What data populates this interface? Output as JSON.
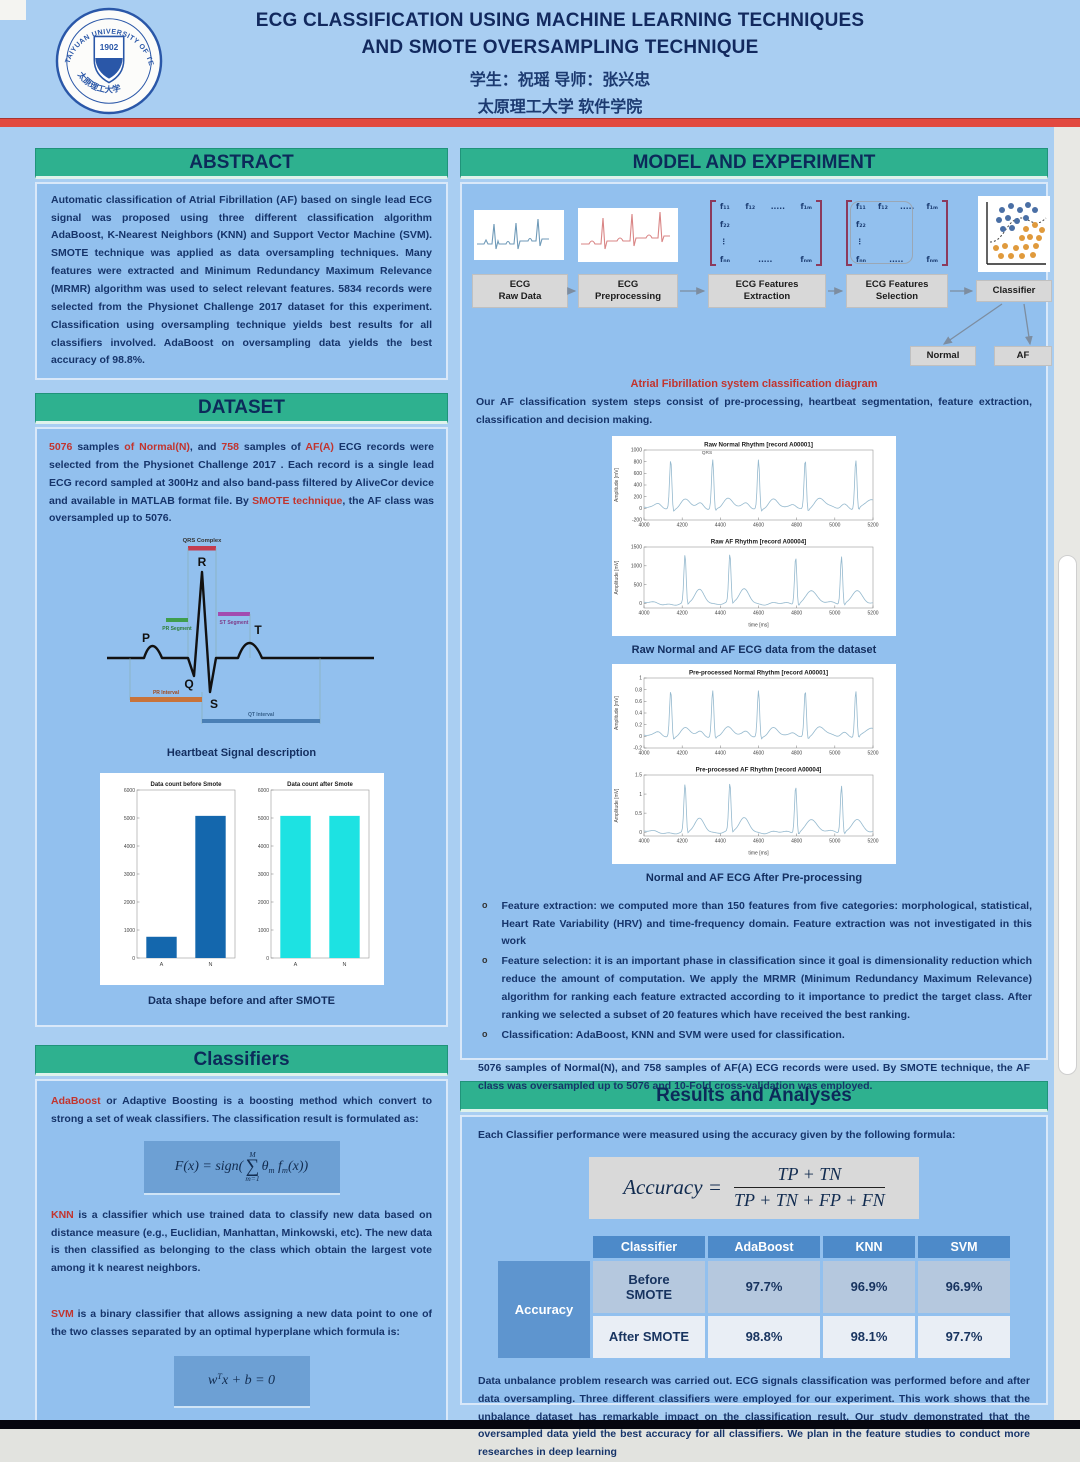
{
  "header": {
    "title_line1": "ECG CLASSIFICATION USING MACHINE LEARNING TECHNIQUES",
    "title_line2": "AND SMOTE OVERSAMPLING TECHNIQUE",
    "authors": "学生：祝瑶    导师：张兴忠",
    "affiliation": "太原理工大学  软件学院",
    "logo": {
      "ring_text": "TAIYUAN UNIVERSITY OF TECHNOLOGY",
      "year": "1902",
      "cn": "太原理工大学"
    }
  },
  "left": {
    "abstract": {
      "title": "ABSTRACT",
      "body": "Automatic classification of Atrial Fibrillation (AF) based on single lead ECG signal was proposed using three different classification algorithm AdaBoost, K-Nearest Neighbors (KNN) and Support Vector Machine (SVM). SMOTE technique was applied as data oversampling techniques. Many features were extracted and Minimum Redundancy Maximum Relevance (MRMR) algorithm was used to select relevant features. 5834 records were selected from the Physionet Challenge 2017 dataset for this experiment. Classification using oversampling technique yields best results for all classifiers involved. AdaBoost on oversampling data yields the best accuracy of 98.8%."
    },
    "dataset": {
      "title": "DATASET",
      "intro": [
        {
          "t": "5076 "
        },
        {
          "t": "samples "
        },
        {
          "t": "of Normal(N)"
        },
        {
          "t": ", and "
        },
        {
          "t": "758 "
        },
        {
          "t": "samples of "
        },
        {
          "t": "AF(A)"
        },
        {
          "t": " ECG records were selected from the Physionet Challenge 2017 . Each record is a single lead ECG record sampled at 300Hz and also band-pass filtered by AliveCor device and available in MATLAB format file. By "
        },
        {
          "t": "SMOTE technique"
        },
        {
          "t": ", the AF class was oversampled up to 5076."
        }
      ],
      "heartbeat": {
        "p": "P",
        "q": "Q",
        "r": "R",
        "s": "S",
        "t": "T",
        "qrs_complex": "QRS Complex",
        "pr_segment": "PR Segment",
        "st_segment": "ST Segment",
        "pr_interval": "PR Interval",
        "qt_interval": "QT Interval",
        "caption": "Heartbeat Signal description"
      },
      "smote_caption": "Data shape before and after SMOTE"
    },
    "classifiers": {
      "title": "Classifiers",
      "adaboost_lead": "AdaBoost",
      "adaboost_rest": " or Adaptive Boosting is a boosting method which convert to strong a set of weak classifiers. The classification result is formulated as:",
      "formula1": {
        "pre": "F(x) = sign(",
        "sum_top": "M",
        "sum_sym": "∑",
        "sum_bot": "m=1",
        "theta": "θ",
        "theta_sub": "m",
        "f": " f",
        "f_sub": "m",
        "post": "(x))"
      },
      "knn_lead": "KNN",
      "knn_rest": " is a classifier which use trained data to classify new data based on distance measure (e.g., Euclidian, Manhattan, Minkowski, etc). The new data is then classified as belonging to the class which obtain the largest vote among it k nearest neighbors.",
      "svm_lead": "SVM",
      "svm_rest": " is a binary classifier that allows assigning a new data point to one of the two classes separated by an optimal hyperplane which formula is:",
      "formula2": {
        "a": "w",
        "sup": "T",
        "b": "x + b = 0"
      }
    }
  },
  "right": {
    "model": {
      "title": "MODEL AND EXPERIMENT",
      "stages": [
        {
          "l1": "ECG",
          "l2": "Raw Data"
        },
        {
          "l1": "ECG",
          "l2": "Preprocessing"
        },
        {
          "l1": "ECG  Features",
          "l2": "Extraction"
        },
        {
          "l1": "ECG  Features",
          "l2": "Selection"
        },
        {
          "l1": "Classifier",
          "l2": ""
        }
      ],
      "outputs": [
        "Normal",
        "AF"
      ],
      "matrix": {
        "c11": "f₁₁",
        "c12": "f₁₂",
        "dots": ".....",
        "c1m": "f₁ₘ",
        "c22": "f₂₂",
        "vdots": "⋮",
        "cnn": "fₙₙ",
        "cnm": "fₙₘ"
      },
      "diagram_caption": "Atrial Fibrillation system classification diagram",
      "intro": "Our AF classification system steps consist of pre-processing, heartbeat segmentation, feature extraction, classification and decision making.",
      "raw_caption": "Raw Normal and AF ECG data from the dataset",
      "pre_caption": "Normal and AF ECG After Pre-processing",
      "bullets": [
        "Feature extraction: we computed more than 150 features from five categories: morphological, statistical, Heart Rate Variability (HRV) and time-frequency domain. Feature extraction was not investigated in this work",
        "Feature selection:  it is an important phase in classification since it goal is dimensionality reduction which reduce the amount of computation. We apply the MRMR (Minimum Redundancy Maximum Relevance) algorithm for ranking each feature extracted according to it importance to predict the target class. After ranking we selected a subset of 20 features which have received the best ranking.",
        "Classification: AdaBoost, KNN and SVM were used for classification."
      ],
      "closing": "5076 samples of Normal(N), and 758 samples of AF(A) ECG records were used. By SMOTE technique, the AF class was oversampled up to 5076 and 10-Fold cross-validation was employed."
    },
    "results": {
      "title": "Results and Analyses",
      "intro": "Each Classifier performance were measured using the accuracy given by the following formula:",
      "formula": {
        "lhs": "Accuracy =",
        "num": "TP + TN",
        "den": "TP + TN + FP + FN"
      },
      "table": {
        "col_headers": [
          "Classifier",
          "AdaBoost",
          "KNN",
          "SVM"
        ],
        "row_group": "Accuracy",
        "rows": [
          {
            "label": "Before\nSMOTE",
            "values": [
              "97.7%",
              "96.9%",
              "96.9%"
            ]
          },
          {
            "label": "After SMOTE",
            "values": [
              "98.8%",
              "98.1%",
              "97.7%"
            ]
          }
        ]
      },
      "conclusion": "Data unbalance problem research was carried out. ECG signals classification was performed before and after data oversampling. Three different classifiers were employed for our experiment. This work shows that the unbalance dataset has remarkable impact on the classification result. Our study demonstrated that the oversampled data yield the best accuracy for all classifiers. We plan in the feature studies to conduct more researches in deep learning"
    }
  },
  "chart_data": [
    {
      "id": "bars-before",
      "type": "bar",
      "title": "Data count before Smote",
      "categories": [
        "A",
        "N"
      ],
      "values": [
        758,
        5076
      ],
      "bar_color": "#1467ad",
      "ylim": [
        0,
        6000
      ],
      "yticks": [
        0,
        1000,
        2000,
        3000,
        4000,
        5000,
        6000
      ]
    },
    {
      "id": "bars-after",
      "type": "bar",
      "title": "Data count after Smote",
      "categories": [
        "A",
        "N"
      ],
      "values": [
        5076,
        5076
      ],
      "bar_color": "#1de2e2",
      "ylim": [
        0,
        6000
      ],
      "yticks": [
        0,
        1000,
        2000,
        3000,
        4000,
        5000,
        6000
      ]
    },
    {
      "id": "raw-normal",
      "type": "line",
      "title": "Raw Normal Rhythm [record A00001]",
      "ylabel": "Amplitude [mV]",
      "xlabel": "",
      "xlim": [
        4000,
        5200
      ],
      "ylim": [
        -200,
        1000
      ],
      "yticks": [
        -200,
        0,
        200,
        400,
        600,
        800,
        1000
      ],
      "xticks": [
        4000,
        4200,
        4400,
        4600,
        4800,
        5000,
        5200
      ],
      "beats_x": [
        4140,
        4360,
        4600,
        4845,
        5110
      ],
      "peak": 850,
      "t_amp": 0.17,
      "p_amp": 0.1,
      "annotation": {
        "text": "QRS",
        "x": 4330,
        "y": 930
      }
    },
    {
      "id": "raw-af",
      "type": "line",
      "title": "Raw AF Rhythm [record A00004]",
      "ylabel": "Amplitude [mV]",
      "xlabel": "time [ms]",
      "xlim": [
        4000,
        5200
      ],
      "ylim": [
        -120,
        1500
      ],
      "yticks": [
        0,
        500,
        1000,
        1500
      ],
      "xticks": [
        4000,
        4200,
        4400,
        4600,
        4800,
        5000,
        5200
      ],
      "beats_x": [
        4215,
        4450,
        4795,
        5035
      ],
      "peak": 1280,
      "t_amp": 0.28,
      "p_amp": 0
    },
    {
      "id": "pre-normal",
      "type": "line",
      "title": "Pre-processed Normal Rhythm [record A00001]",
      "ylabel": "Amplitude [mV]",
      "xlabel": "",
      "xlim": [
        4000,
        5200
      ],
      "ylim": [
        -0.2,
        1
      ],
      "yticks": [
        -0.2,
        0,
        0.2,
        0.4,
        0.6,
        0.8,
        1
      ],
      "xticks": [
        4000,
        4200,
        4400,
        4600,
        4800,
        5000,
        5200
      ],
      "beats_x": [
        4140,
        4360,
        4600,
        4845,
        5110
      ],
      "peak": 0.8,
      "t_amp": 0.17,
      "p_amp": 0.1
    },
    {
      "id": "pre-af",
      "type": "line",
      "title": "Pre-processed AF Rhythm [record A00004]",
      "ylabel": "Amplitude [mV]",
      "xlabel": "time [ms]",
      "xlim": [
        4000,
        5200
      ],
      "ylim": [
        -0.1,
        1.5
      ],
      "yticks": [
        0,
        0.5,
        1,
        1.5
      ],
      "xticks": [
        4000,
        4200,
        4400,
        4600,
        4800,
        5000,
        5200
      ],
      "beats_x": [
        4215,
        4450,
        4795,
        5035
      ],
      "peak": 1.25,
      "t_amp": 0.28,
      "p_amp": 0
    }
  ]
}
